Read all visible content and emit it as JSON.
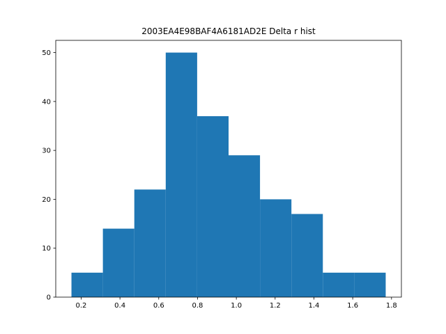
{
  "chart_data": {
    "type": "bar",
    "title": "2003EA4E98BAF4A6181AD2E Delta r hist",
    "xlabel": "",
    "ylabel": "",
    "bin_edges": [
      0.15,
      0.312,
      0.474,
      0.636,
      0.798,
      0.96,
      1.122,
      1.284,
      1.446,
      1.608,
      1.77
    ],
    "values": [
      5,
      14,
      22,
      50,
      37,
      29,
      20,
      17,
      5,
      5
    ],
    "xlim": [
      0.069,
      1.851
    ],
    "ylim": [
      0,
      52.5
    ],
    "x_ticks": [
      0.2,
      0.4,
      0.6,
      0.8,
      1.0,
      1.2,
      1.4,
      1.6,
      1.8
    ],
    "x_tick_labels": [
      "0.2",
      "0.4",
      "0.6",
      "0.8",
      "1.0",
      "1.2",
      "1.4",
      "1.6",
      "1.8"
    ],
    "y_ticks": [
      0,
      10,
      20,
      30,
      40,
      50
    ],
    "y_tick_labels": [
      "0",
      "10",
      "20",
      "30",
      "40",
      "50"
    ],
    "bar_color": "#1f77b4",
    "grid": false,
    "legend": "none"
  }
}
